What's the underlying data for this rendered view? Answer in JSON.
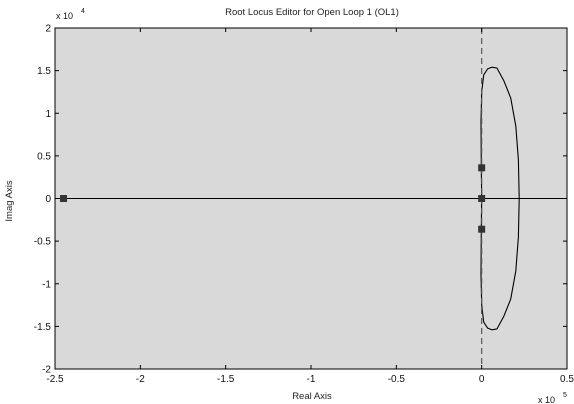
{
  "chart_data": {
    "type": "line",
    "title": "Root Locus Editor for Open Loop 1 (OL1)",
    "xlabel": "Real Axis",
    "ylabel": "Imag Axis",
    "x_exponent_label": "x 10",
    "x_exponent": "5",
    "y_exponent_label": "x 10",
    "y_exponent": "4",
    "xlim": [
      -2.5,
      0.5
    ],
    "ylim": [
      -2,
      2
    ],
    "xticks": [
      "-2.5",
      "-2",
      "-1.5",
      "-1",
      "-0.5",
      "0",
      "0.5"
    ],
    "xtick_values": [
      -2.5,
      -2,
      -1.5,
      -1,
      -0.5,
      0,
      0.5
    ],
    "yticks": [
      "-2",
      "-1.5",
      "-1",
      "-0.5",
      "0",
      "0.5",
      "1",
      "1.5",
      "2"
    ],
    "ytick_values": [
      -2,
      -1.5,
      -1,
      -0.5,
      0,
      0.5,
      1,
      1.5,
      2
    ],
    "grid": false,
    "background_color": "#d9d9d9",
    "line_color": "#000000",
    "marker_color": "#333333",
    "series": [
      {
        "type": "line",
        "points": [
          [
            -2.5,
            0
          ],
          [
            0.5,
            0
          ]
        ]
      },
      {
        "type": "line",
        "points": [
          [
            0.0,
            1.25
          ],
          [
            0.012,
            1.45
          ],
          [
            0.035,
            1.52
          ],
          [
            0.06,
            1.54
          ],
          [
            0.09,
            1.53
          ],
          [
            0.13,
            1.38
          ],
          [
            0.17,
            1.18
          ],
          [
            0.2,
            0.85
          ],
          [
            0.215,
            0.45
          ],
          [
            0.22,
            0.0
          ],
          [
            0.215,
            -0.45
          ],
          [
            0.2,
            -0.85
          ],
          [
            0.17,
            -1.18
          ],
          [
            0.13,
            -1.38
          ],
          [
            0.09,
            -1.53
          ],
          [
            0.06,
            -1.54
          ],
          [
            0.035,
            -1.52
          ],
          [
            0.012,
            -1.45
          ],
          [
            0.0,
            -1.25
          ]
        ]
      },
      {
        "type": "line",
        "points": [
          [
            0.0,
            1.25
          ],
          [
            -0.004,
            0.9
          ],
          [
            -0.002,
            0.36
          ],
          [
            0.0,
            0.0
          ],
          [
            -0.002,
            -0.36
          ],
          [
            -0.004,
            -0.9
          ],
          [
            0.0,
            -1.25
          ]
        ]
      }
    ],
    "markers": [
      {
        "x": -2.45,
        "y": 0
      },
      {
        "x": 0.0,
        "y": 0
      },
      {
        "x": 0.0,
        "y": 0.36
      },
      {
        "x": 0.0,
        "y": -0.36
      }
    ],
    "reference_lines": [
      {
        "orientation": "vertical",
        "x": 0,
        "style": "dashed"
      }
    ]
  }
}
